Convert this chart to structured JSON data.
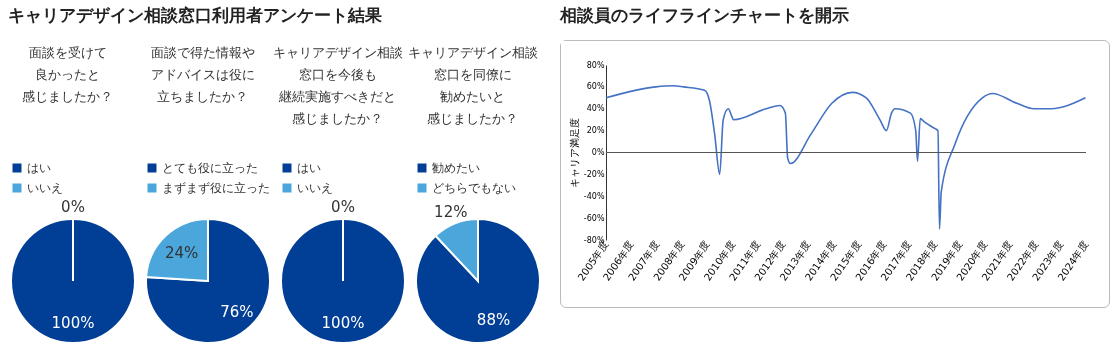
{
  "chart_data": [
    {
      "type": "pie",
      "title": "面談を受けて良かったと感じましたか？",
      "annotations": [
        "キャリアデザイン相談窓口利用者アンケート結果"
      ],
      "categories": [
        "はい",
        "いいえ"
      ],
      "values": [
        100,
        0
      ],
      "colors": [
        "#003f95",
        "#4aa6db"
      ],
      "value_labels": [
        "100%",
        "0%"
      ],
      "legend": "top"
    },
    {
      "type": "pie",
      "title": "面談で得た情報やアドバイスは役に立ちましたか？",
      "categories": [
        "とても役に立った",
        "まずまず役に立った"
      ],
      "values": [
        76,
        24
      ],
      "colors": [
        "#003f95",
        "#4aa6db"
      ],
      "value_labels": [
        "76%",
        "24%"
      ],
      "legend": "top"
    },
    {
      "type": "pie",
      "title": "キャリアデザイン相談窓口を今後も継続実施すべきだと感じましたか？",
      "categories": [
        "はい",
        "いいえ"
      ],
      "values": [
        100,
        0
      ],
      "colors": [
        "#003f95",
        "#4aa6db"
      ],
      "value_labels": [
        "100%",
        "0%"
      ],
      "legend": "top"
    },
    {
      "type": "pie",
      "title": "キャリアデザイン相談窓口を同僚に勧めたいと感じましたか？",
      "categories": [
        "勧めたい",
        "どちらでもない"
      ],
      "values": [
        88,
        12
      ],
      "colors": [
        "#003f95",
        "#4aa6db"
      ],
      "value_labels": [
        "88%",
        "12%"
      ],
      "legend": "top"
    },
    {
      "type": "line",
      "title": "相談員のライフラインチャートを開示",
      "ylabel": "キャリア満足度",
      "x": [
        2005,
        2006.98,
        2007.66,
        2008.07,
        2008.9,
        2009.09,
        2009.3,
        2009.5,
        2009.64,
        2009.84,
        2009.98,
        2010.05,
        2011.34,
        2011.89,
        2012.1,
        2012.19,
        2012.3,
        2013.12,
        2013.94,
        2014.75,
        2015.3,
        2015.84,
        2016.1,
        2016.3,
        2016.44,
        2017.05,
        2017.26,
        2017.33,
        2017.44,
        2017.6,
        2018.01,
        2018.14,
        2018.2,
        2018.27,
        2018.82,
        2019.9,
        2020.3,
        2021.26,
        2021.94,
        2022.62,
        2023.98
      ],
      "series": [
        {
          "color": "#4472c4",
          "values": [
            50,
            60,
            61,
            60,
            57,
            48,
            17,
            -20,
            30,
            40,
            33,
            30,
            40,
            43,
            36,
            -5,
            -10,
            17,
            45,
            55,
            50,
            30,
            20,
            36,
            40,
            36,
            20,
            -8,
            31,
            28,
            22,
            20,
            -70,
            -36,
            8,
            50,
            54,
            45,
            40,
            40,
            50
          ]
        }
      ],
      "xlim": [
        2005,
        2024
      ],
      "xticks": [
        {
          "value": 2005,
          "label": "2005年度"
        },
        {
          "value": 2006,
          "label": "2006年度"
        },
        {
          "value": 2007,
          "label": "2007年度"
        },
        {
          "value": 2008,
          "label": "2008年度"
        },
        {
          "value": 2009,
          "label": "2009年度"
        },
        {
          "value": 2010,
          "label": "2010年度"
        },
        {
          "value": 2011,
          "label": "2011年度"
        },
        {
          "value": 2012,
          "label": "2012年度"
        },
        {
          "value": 2013,
          "label": "2013年度"
        },
        {
          "value": 2014,
          "label": "2014年度"
        },
        {
          "value": 2015,
          "label": "2015年度"
        },
        {
          "value": 2016,
          "label": "2016年度"
        },
        {
          "value": 2017,
          "label": "2017年度"
        },
        {
          "value": 2018,
          "label": "2018年度"
        },
        {
          "value": 2019,
          "label": "2019年度"
        },
        {
          "value": 2020,
          "label": "2020年度"
        },
        {
          "value": 2021,
          "label": "2021年度"
        },
        {
          "value": 2022,
          "label": "2022年度"
        },
        {
          "value": 2023,
          "label": "2023年度"
        },
        {
          "value": 2024,
          "label": "2024年度"
        }
      ],
      "ylim": [
        -80,
        80
      ],
      "yticks": [
        {
          "value": -80,
          "label": "-80%"
        },
        {
          "value": -60,
          "label": "-60%"
        },
        {
          "value": -40,
          "label": "-40%"
        },
        {
          "value": -20,
          "label": "-20%"
        },
        {
          "value": 0,
          "label": "0%"
        },
        {
          "value": 20,
          "label": "20%"
        },
        {
          "value": 40,
          "label": "40%"
        },
        {
          "value": 60,
          "label": "60%"
        },
        {
          "value": 80,
          "label": "80%"
        }
      ],
      "ref_lines": [
        {
          "axis": "y",
          "value": 0,
          "color": "#555555"
        }
      ]
    }
  ]
}
